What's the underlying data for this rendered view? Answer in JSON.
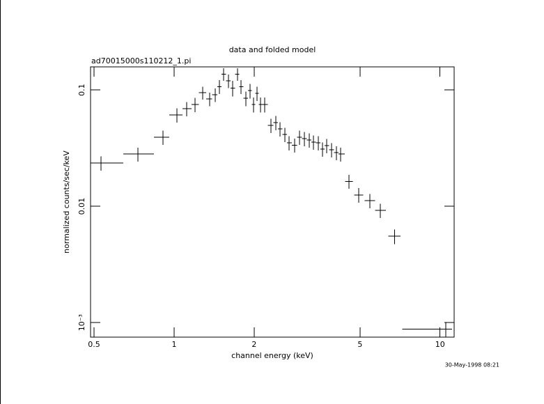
{
  "chart_data": {
    "type": "scatter",
    "title": "data and folded model",
    "subtitle": "ad70015000s110212_1.pi",
    "x_label": "channel energy (keV)",
    "y_label": "normalized counts/sec/keV",
    "timestamp": "30-May-1998 08:21",
    "color": "#000000",
    "x_log": true,
    "y_log": true,
    "xlim": [
      0.485,
      11.3
    ],
    "ylim": [
      0.00075,
      0.158
    ],
    "xticks": [
      0.5,
      1,
      2,
      5,
      10
    ],
    "yticks": [
      0.1,
      0.01,
      {
        "value": 0.001,
        "label": "10⁻³"
      }
    ],
    "x": [
      0.531,
      0.731,
      0.908,
      1.024,
      1.115,
      1.198,
      1.28,
      1.36,
      1.427,
      1.48,
      1.534,
      1.6,
      1.659,
      1.731,
      1.784,
      1.86,
      1.929,
      1.988,
      2.049,
      2.112,
      2.19,
      2.311,
      2.411,
      2.5,
      2.608,
      2.704,
      2.838,
      2.96,
      3.088,
      3.22,
      3.339,
      3.483,
      3.612,
      3.744,
      3.905,
      4.073,
      4.224,
      4.541,
      4.939,
      5.44,
      5.955,
      6.757,
      10.5
    ],
    "x_low": [
      0.485,
      0.644,
      0.84,
      0.96,
      1.075,
      1.162,
      1.24,
      1.32,
      1.39,
      1.455,
      1.507,
      1.567,
      1.63,
      1.695,
      1.757,
      1.822,
      1.894,
      1.958,
      2.018,
      2.08,
      2.15,
      2.25,
      2.36,
      2.455,
      2.553,
      2.655,
      2.77,
      2.9,
      3.023,
      3.153,
      3.28,
      3.41,
      3.547,
      3.678,
      3.823,
      3.988,
      4.148,
      4.4,
      4.75,
      5.2,
      5.7,
      6.4,
      7.22
    ],
    "x_high": [
      0.644,
      0.84,
      0.96,
      1.075,
      1.162,
      1.24,
      1.32,
      1.39,
      1.455,
      1.507,
      1.567,
      1.63,
      1.695,
      1.757,
      1.822,
      1.894,
      1.958,
      2.018,
      2.08,
      2.15,
      2.25,
      2.36,
      2.455,
      2.553,
      2.655,
      2.77,
      2.9,
      3.023,
      3.153,
      3.28,
      3.41,
      3.547,
      3.678,
      3.823,
      3.988,
      4.148,
      4.38,
      4.7,
      5.15,
      5.7,
      6.25,
      7.1,
      11.1
    ],
    "values": [
      0.0235,
      0.0281,
      0.0392,
      0.0609,
      0.0689,
      0.0749,
      0.0946,
      0.0836,
      0.0908,
      0.107,
      0.137,
      0.1196,
      0.104,
      0.137,
      0.107,
      0.0847,
      0.0986,
      0.0749,
      0.0933,
      0.0749,
      0.0749,
      0.0495,
      0.0523,
      0.0462,
      0.0414,
      0.0351,
      0.0336,
      0.0392,
      0.0381,
      0.0371,
      0.0356,
      0.0351,
      0.031,
      0.0332,
      0.0306,
      0.0289,
      0.0281,
      0.0164,
      0.0125,
      0.0112,
      0.0092,
      0.00553,
      0.00088
    ],
    "errors": [
      0.0033,
      0.0039,
      0.0055,
      0.0085,
      0.0096,
      0.0105,
      0.012,
      0.011,
      0.012,
      0.015,
      0.017,
      0.016,
      0.016,
      0.017,
      0.015,
      0.012,
      0.014,
      0.011,
      0.013,
      0.011,
      0.011,
      0.007,
      0.0073,
      0.0065,
      0.0058,
      0.0049,
      0.0047,
      0.0055,
      0.0053,
      0.0052,
      0.005,
      0.0049,
      0.0043,
      0.0046,
      0.0043,
      0.004,
      0.0039,
      0.0023,
      0.0018,
      0.0016,
      0.0013,
      0.0008,
      0.00013
    ]
  }
}
